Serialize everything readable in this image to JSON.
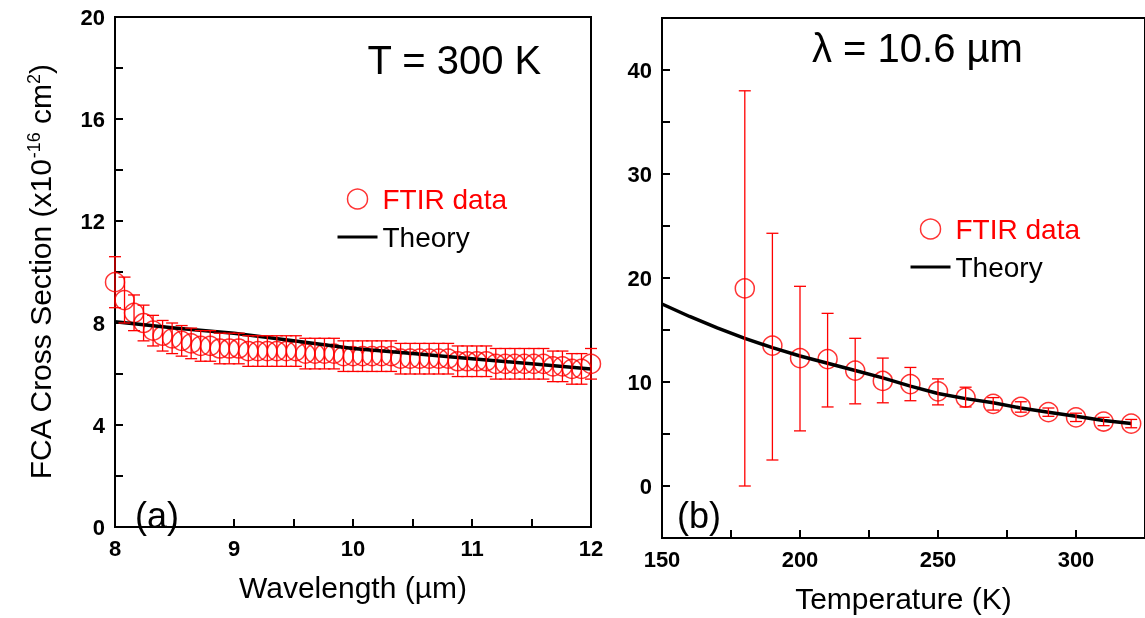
{
  "chart_data": [
    {
      "type": "scatter",
      "xlabel": "Wavelength (µm)",
      "ylabel": "FCA Cross Section (x10$^{-16}$ cm$^{2}$)",
      "annotations": [
        "T = 300 K",
        "(a)"
      ],
      "legend": "right",
      "marker": "circle",
      "grid": false,
      "xlim": [
        8,
        12
      ],
      "xticks": [
        8,
        {
          "value": 8.5,
          "label": null
        },
        9,
        {
          "value": 9.5,
          "label": null
        },
        10,
        {
          "value": 10.5,
          "label": null
        },
        11,
        {
          "value": 11.5,
          "label": null
        },
        12
      ],
      "ylim": [
        0,
        20
      ],
      "yticks": [
        0,
        {
          "value": 2,
          "label": null
        },
        4,
        {
          "value": 6,
          "label": null
        },
        8,
        {
          "value": 10,
          "label": null
        },
        12,
        {
          "value": 14,
          "label": null
        },
        16,
        {
          "value": 18,
          "label": null
        },
        20
      ],
      "series": [
        {
          "name": "FTIR data",
          "type": "scatter",
          "color": "#ff0000",
          "x": [
            8.0,
            8.08,
            8.16,
            8.24,
            8.32,
            8.4,
            8.48,
            8.56,
            8.64,
            8.72,
            8.8,
            8.88,
            8.96,
            9.04,
            9.12,
            9.2,
            9.28,
            9.36,
            9.44,
            9.52,
            9.6,
            9.68,
            9.76,
            9.84,
            9.92,
            10.0,
            10.08,
            10.16,
            10.24,
            10.32,
            10.4,
            10.48,
            10.56,
            10.64,
            10.72,
            10.8,
            10.88,
            10.96,
            11.04,
            11.12,
            11.2,
            11.28,
            11.36,
            11.44,
            11.52,
            11.6,
            11.68,
            11.76,
            11.84,
            11.92,
            12.0
          ],
          "values": [
            9.6,
            8.9,
            8.4,
            8.0,
            7.7,
            7.5,
            7.4,
            7.3,
            7.2,
            7.1,
            7.1,
            7.0,
            7.0,
            7.0,
            6.9,
            6.9,
            6.9,
            6.9,
            6.9,
            6.9,
            6.8,
            6.8,
            6.8,
            6.8,
            6.7,
            6.7,
            6.7,
            6.7,
            6.7,
            6.7,
            6.6,
            6.6,
            6.6,
            6.6,
            6.6,
            6.6,
            6.5,
            6.5,
            6.5,
            6.5,
            6.4,
            6.4,
            6.4,
            6.4,
            6.4,
            6.4,
            6.3,
            6.3,
            6.2,
            6.2,
            6.4
          ],
          "errors": [
            1.0,
            0.9,
            0.7,
            0.7,
            0.6,
            0.6,
            0.6,
            0.6,
            0.6,
            0.6,
            0.6,
            0.6,
            0.6,
            0.6,
            0.6,
            0.6,
            0.6,
            0.6,
            0.6,
            0.6,
            0.6,
            0.6,
            0.6,
            0.6,
            0.6,
            0.6,
            0.6,
            0.6,
            0.6,
            0.6,
            0.6,
            0.6,
            0.6,
            0.6,
            0.6,
            0.6,
            0.6,
            0.6,
            0.6,
            0.6,
            0.6,
            0.6,
            0.6,
            0.6,
            0.6,
            0.6,
            0.6,
            0.6,
            0.6,
            0.6,
            0.6
          ]
        },
        {
          "name": "Theory",
          "type": "line",
          "color": "#000000",
          "marker": "none",
          "line_style": "solid",
          "x": [
            8,
            8.5,
            9,
            9.5,
            10,
            10.5,
            11,
            11.5,
            12
          ],
          "values": [
            8.05,
            7.8,
            7.6,
            7.3,
            7.0,
            6.8,
            6.6,
            6.4,
            6.2
          ]
        }
      ]
    },
    {
      "type": "scatter",
      "xlabel": "Temperature (K)",
      "annotations": [
        "λ = 10.6 µm",
        "(b)"
      ],
      "legend": "right",
      "marker": "circle",
      "grid": false,
      "xlim": [
        150,
        325
      ],
      "xticks": [
        150,
        {
          "value": 175,
          "label": null
        },
        200,
        {
          "value": 225,
          "label": null
        },
        250,
        {
          "value": 275,
          "label": null
        },
        300,
        {
          "value": 325,
          "label": null
        }
      ],
      "ylim": [
        -5,
        45
      ],
      "yticks": [
        {
          "value": -5,
          "label": null
        },
        0,
        {
          "value": 5,
          "label": null
        },
        10,
        {
          "value": 15,
          "label": null
        },
        20,
        {
          "value": 25,
          "label": null
        },
        30,
        {
          "value": 35,
          "label": null
        },
        40
      ],
      "series": [
        {
          "name": "FTIR data",
          "type": "scatter",
          "color": "#ff0000",
          "x": [
            180,
            190,
            200,
            210,
            220,
            230,
            240,
            250,
            260,
            270,
            280,
            290,
            300,
            310,
            320
          ],
          "values": [
            19.0,
            13.5,
            12.3,
            12.2,
            11.1,
            10.1,
            9.8,
            9.1,
            8.5,
            7.9,
            7.6,
            7.1,
            6.6,
            6.2,
            6.0
          ],
          "errors": [
            [
              0,
              38
            ],
            [
              2.5,
              24.3
            ],
            [
              5.3,
              19.2
            ],
            [
              7.6,
              16.6
            ],
            [
              7.9,
              14.2
            ],
            [
              8.0,
              12.3
            ],
            [
              8.2,
              11.4
            ],
            [
              7.8,
              10.3
            ],
            [
              7.6,
              9.5
            ],
            [
              7.3,
              8.5
            ],
            [
              7.1,
              8.1
            ],
            [
              6.7,
              7.5
            ],
            [
              6.2,
              7.0
            ],
            [
              5.8,
              6.6
            ],
            [
              5.6,
              6.4
            ]
          ]
        },
        {
          "name": "Theory",
          "type": "line",
          "color": "#000000",
          "marker": "none",
          "line_style": "solid",
          "x": [
            150,
            160,
            170,
            180,
            190,
            200,
            210,
            220,
            230,
            240,
            250,
            260,
            270,
            280,
            290,
            300,
            310,
            320
          ],
          "values": [
            17.5,
            16.3,
            15.2,
            14.2,
            13.3,
            12.5,
            11.8,
            11.1,
            10.4,
            9.6,
            8.9,
            8.4,
            8.0,
            7.5,
            7.1,
            6.7,
            6.3,
            6.0
          ]
        }
      ]
    }
  ]
}
